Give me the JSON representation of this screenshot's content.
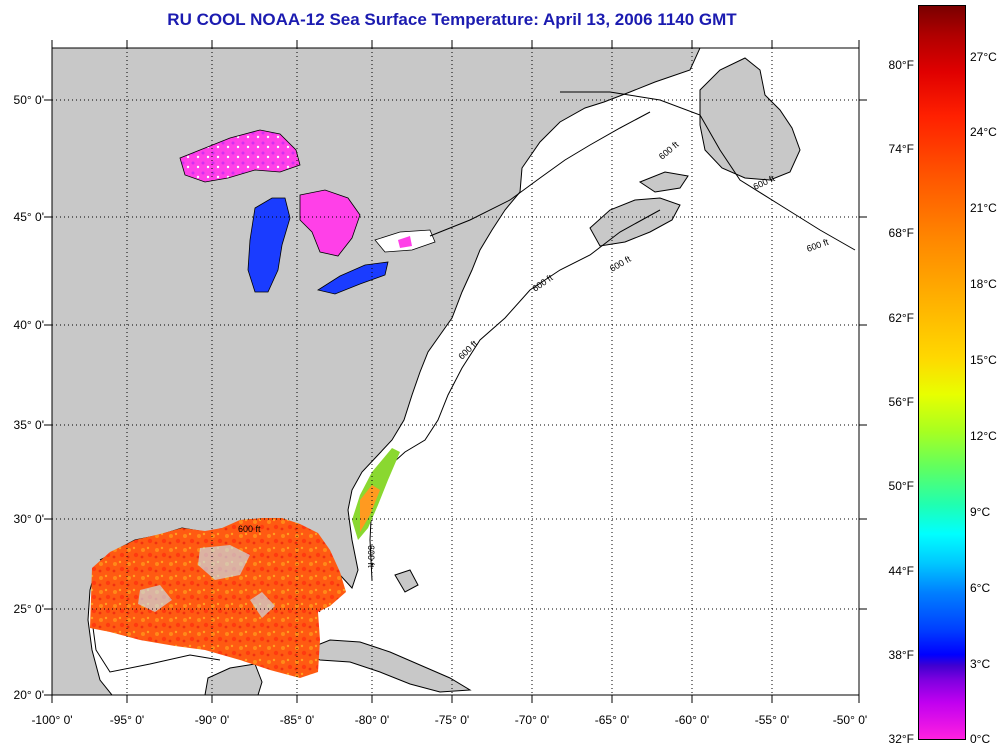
{
  "title": "RU COOL  NOAA-12  Sea Surface Temperature:  April 13, 2006 1140 GMT",
  "y_axis_labels": [
    "50° 0'",
    "45° 0'",
    "40° 0'",
    "35° 0'",
    "30° 0'",
    "25° 0'",
    "20° 0'"
  ],
  "x_axis_labels": [
    "-100° 0'",
    "-95° 0'",
    "-90° 0'",
    "-85° 0'",
    "-80° 0'",
    "-75° 0'",
    "-70° 0'",
    "-65° 0'",
    "-60° 0'",
    "-55° 0'",
    "-50° 0'"
  ],
  "colorbar": {
    "fahrenheit_labels": [
      "80°F",
      "74°F",
      "68°F",
      "62°F",
      "56°F",
      "50°F",
      "44°F",
      "38°F",
      "32°F"
    ],
    "celsius_labels": [
      "27°C",
      "24°C",
      "21°C",
      "18°C",
      "15°C",
      "12°C",
      "9°C",
      "6°C",
      "3°C",
      "0°C"
    ]
  },
  "isobath_labels": [
    "600 ft",
    "600 ft",
    "600 ft",
    "600 ft",
    "600 ft",
    "600 ft",
    "600 ft",
    "600 ft"
  ],
  "colors": {
    "land": "#c8c8c8",
    "ocean": "#ffffff",
    "title": "#1b1bb0",
    "lakes_cold": "#ff40e8",
    "lakes_blue": "#1a3cff",
    "gulf_warm": "#ff5a10",
    "gulf_orange": "#ff8c18",
    "florida_green": "#a0f020"
  }
}
